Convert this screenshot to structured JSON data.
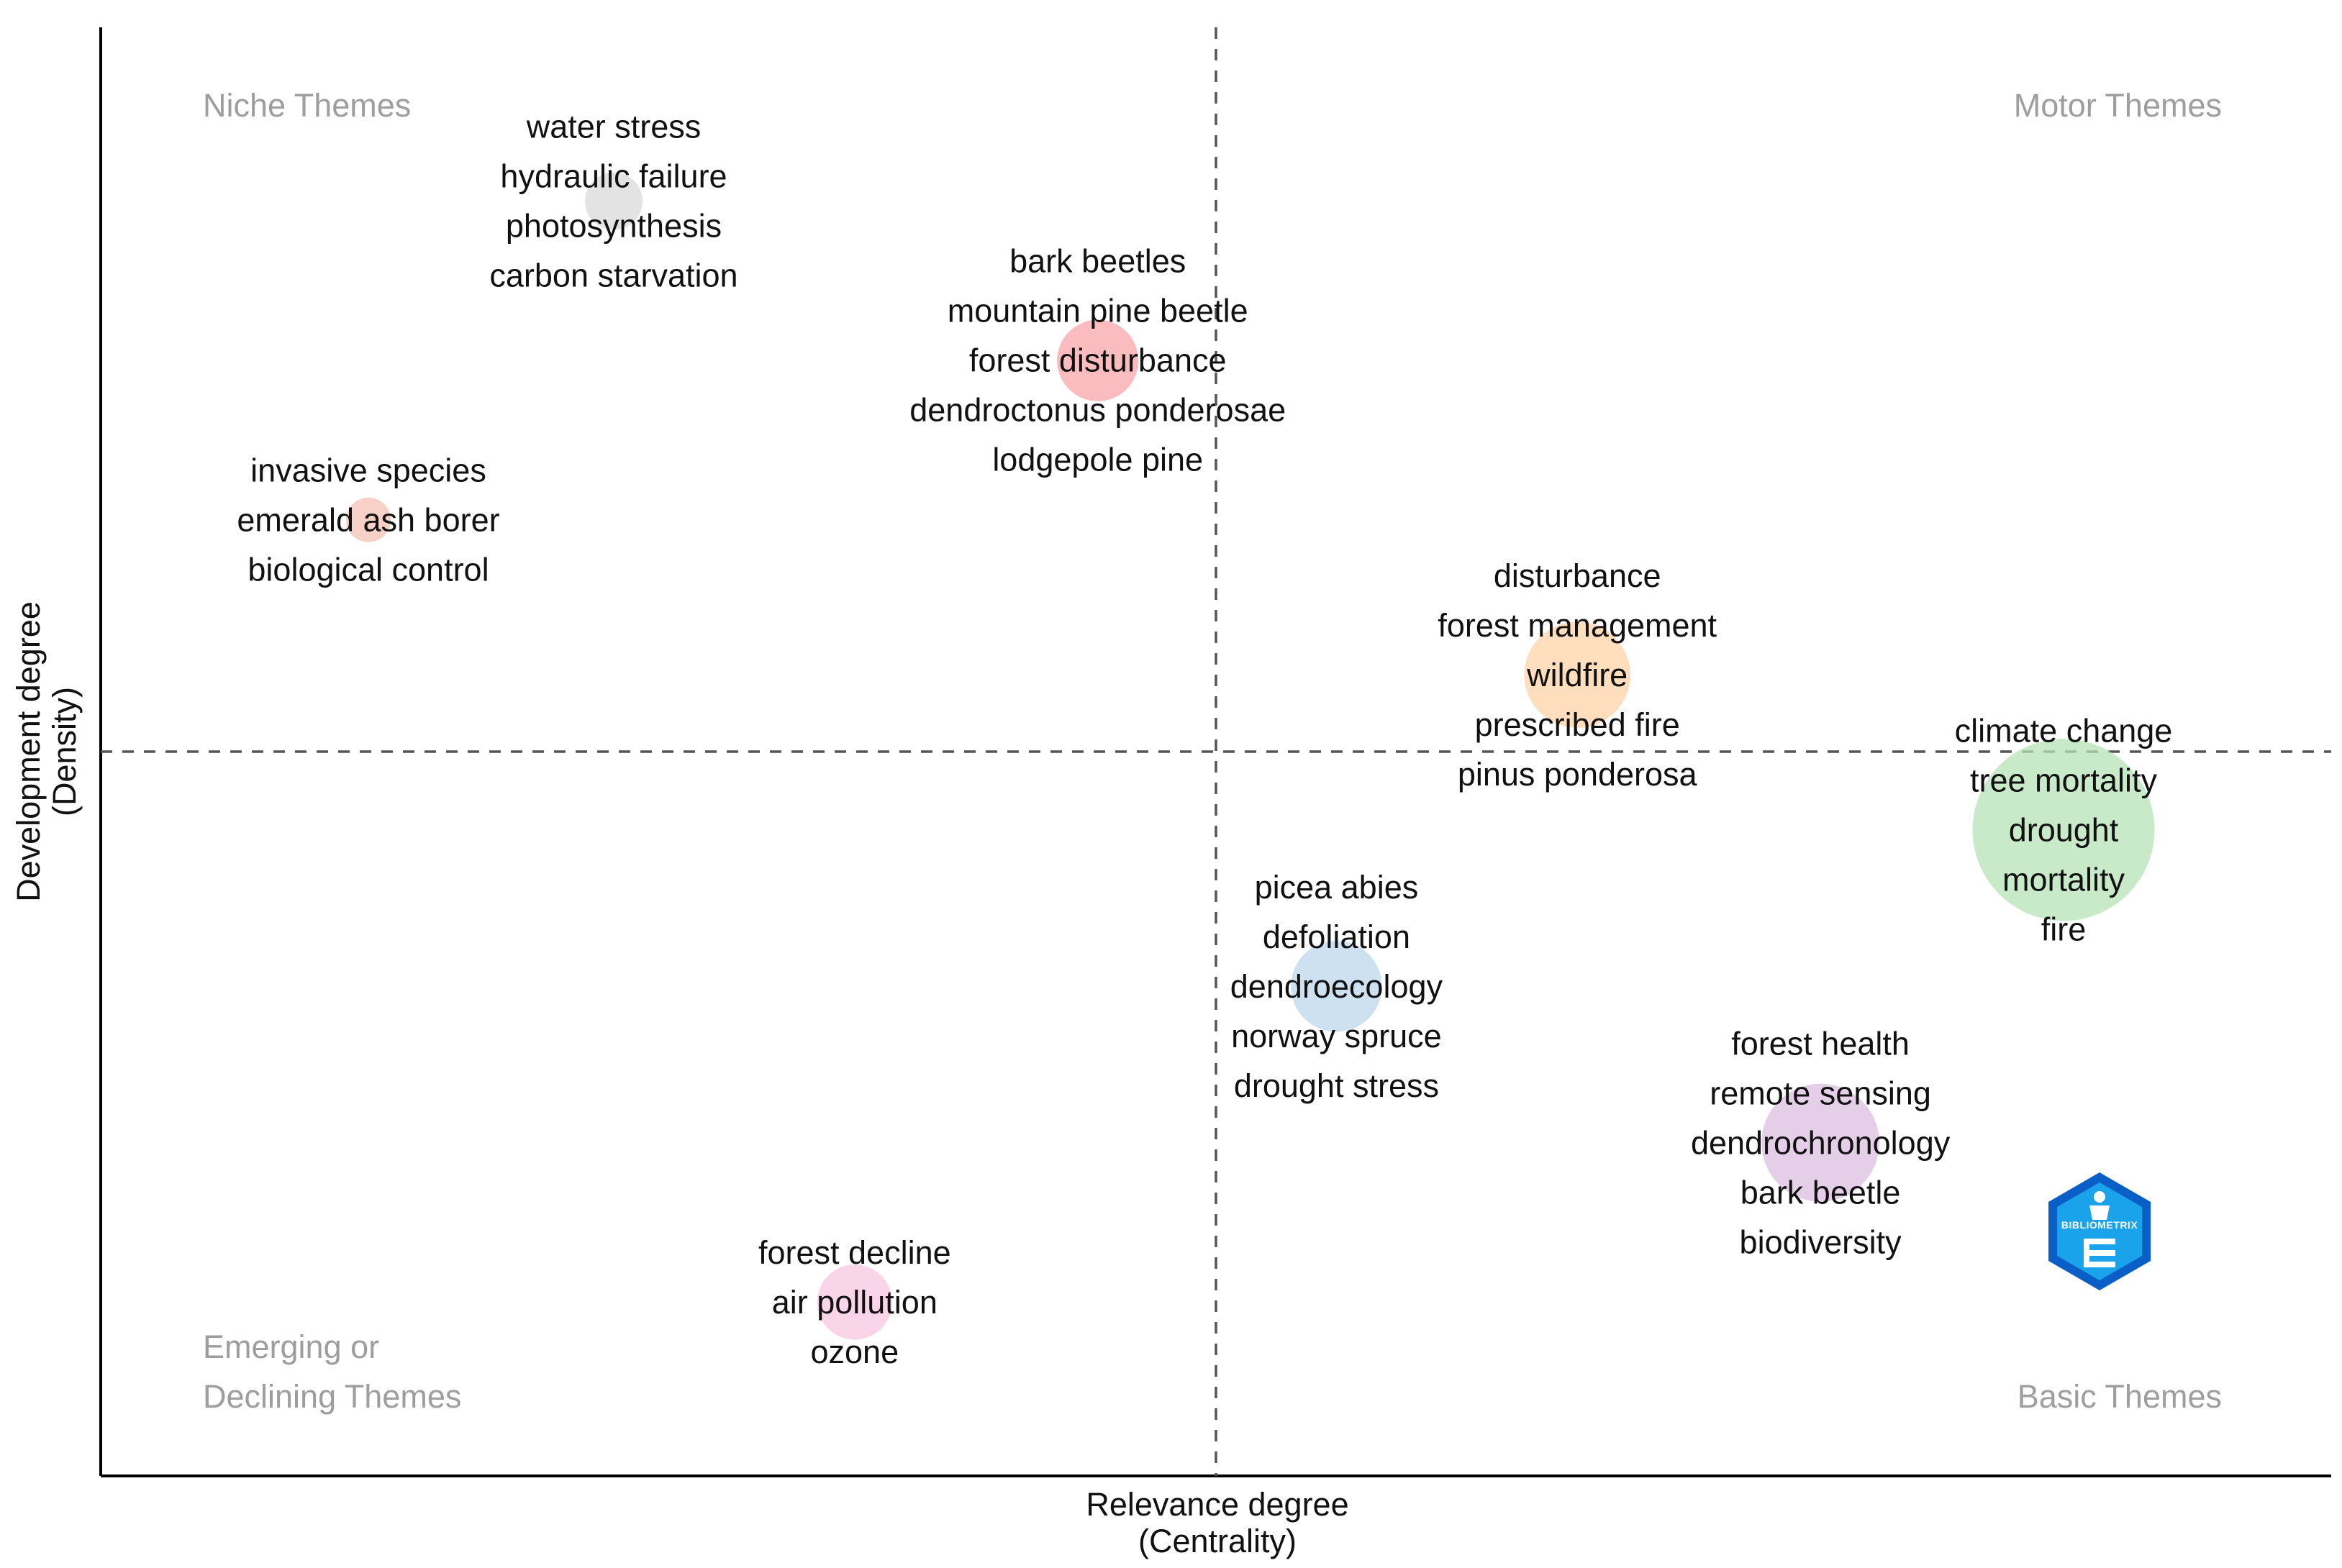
{
  "chart_data": {
    "type": "scatter",
    "subtype": "bubble-thematic-map",
    "xlabel_line1": "Relevance degree",
    "xlabel_line2": "(Centrality)",
    "ylabel_line1": "Development degree",
    "ylabel_line2": "(Density)",
    "xlim": [
      0,
      1
    ],
    "ylim": [
      0,
      1
    ],
    "x_split": 0.5,
    "y_split": 0.5,
    "quadrants": {
      "top_left": [
        "Niche Themes"
      ],
      "top_right": [
        "Motor Themes"
      ],
      "bottom_left": [
        "Emerging or",
        "Declining Themes"
      ],
      "bottom_right": [
        "Basic Themes"
      ]
    },
    "clusters": [
      {
        "name": "water stress",
        "x": 0.23,
        "y": 0.88,
        "size": 1.0,
        "color": "#d9d9d9",
        "keywords": [
          "water stress",
          "hydraulic failure",
          "photosynthesis",
          "carbon starvation"
        ]
      },
      {
        "name": "bark beetles",
        "x": 0.447,
        "y": 0.77,
        "size": 2.0,
        "color": "#f8a5a8",
        "keywords": [
          "bark beetles",
          "mountain pine beetle",
          "forest disturbance",
          "dendroctonus ponderosae",
          "lodgepole pine"
        ]
      },
      {
        "name": "invasive species",
        "x": 0.12,
        "y": 0.66,
        "size": 0.6,
        "color": "#f4c0b4",
        "keywords": [
          "invasive species",
          "emerald ash borer",
          "biological control"
        ]
      },
      {
        "name": "disturbance",
        "x": 0.662,
        "y": 0.553,
        "size": 3.4,
        "color": "#fdd3a6",
        "keywords": [
          "disturbance",
          "forest management",
          "wildfire",
          "prescribed fire",
          "pinus ponderosa"
        ]
      },
      {
        "name": "climate change",
        "x": 0.88,
        "y": 0.446,
        "size": 10.0,
        "color": "#b7e3b7",
        "keywords": [
          "climate change",
          "tree mortality",
          "drought",
          "mortality",
          "fire"
        ]
      },
      {
        "name": "picea abies",
        "x": 0.554,
        "y": 0.338,
        "size": 2.5,
        "color": "#bdd7ec",
        "keywords": [
          "picea abies",
          "defoliation",
          "dendroecology",
          "norway spruce",
          "drought stress"
        ]
      },
      {
        "name": "forest health",
        "x": 0.771,
        "y": 0.23,
        "size": 4.2,
        "color": "#dcbfe0",
        "keywords": [
          "forest health",
          "remote sensing",
          "dendrochronology",
          "bark beetle",
          "biodiversity"
        ]
      },
      {
        "name": "forest decline",
        "x": 0.338,
        "y": 0.12,
        "size": 1.7,
        "color": "#f8c6e2",
        "keywords": [
          "forest decline",
          "air pollution",
          "ozone"
        ]
      }
    ],
    "logo_text": "BIBLIOMETRIX"
  },
  "colors": {
    "axis": "#000000",
    "divider": "#555555",
    "quadrant_label": "#9e9e9e",
    "logo_dark": "#0a5fc7",
    "logo_light": "#1aa3ea"
  }
}
